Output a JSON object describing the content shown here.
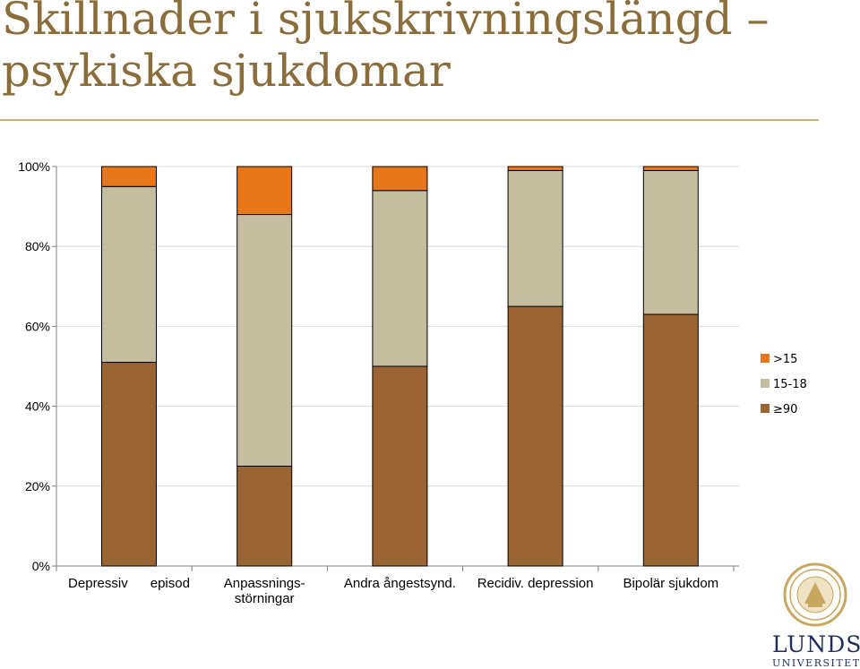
{
  "title": "Skillnader i sjukskrivningslängd – psykiska sjukdomar",
  "logo": {
    "name": "LUNDS",
    "subtitle": "UNIVERSITET"
  },
  "colors": {
    "gt15": "#e8761a",
    "mid": "#c5bda0",
    "base": "#9a6433",
    "outline": "#000000",
    "grid": "#d9d9d9"
  },
  "chart_data": {
    "type": "bar",
    "stacked": true,
    "percent": true,
    "categories": [
      "Depressiv episod",
      "Anpassnings-störningar",
      "Andra ångestsynd.",
      "Recidiv. depression",
      "Bipolär sjukdom"
    ],
    "category_lines": [
      [
        "Depressiv      episod"
      ],
      [
        "Anpassnings-",
        "störningar"
      ],
      [
        "Andra ångestsynd."
      ],
      [
        "Recidiv. depression"
      ],
      [
        "Bipolär sjukdom"
      ]
    ],
    "series": [
      {
        "name": "≥90",
        "color": "#9a6433",
        "values": [
          51,
          25,
          50,
          65,
          63
        ]
      },
      {
        "name": "15-18",
        "color": "#c5bda0",
        "values": [
          44,
          63,
          44,
          34,
          36
        ]
      },
      {
        "name": ">15",
        "color": "#e8761a",
        "values": [
          5,
          12,
          6,
          1,
          1
        ]
      }
    ],
    "ylim": [
      0,
      100
    ],
    "yticks": [
      "0%",
      "20%",
      "40%",
      "60%",
      "80%",
      "100%"
    ],
    "grid": true,
    "legend_position": "right"
  }
}
